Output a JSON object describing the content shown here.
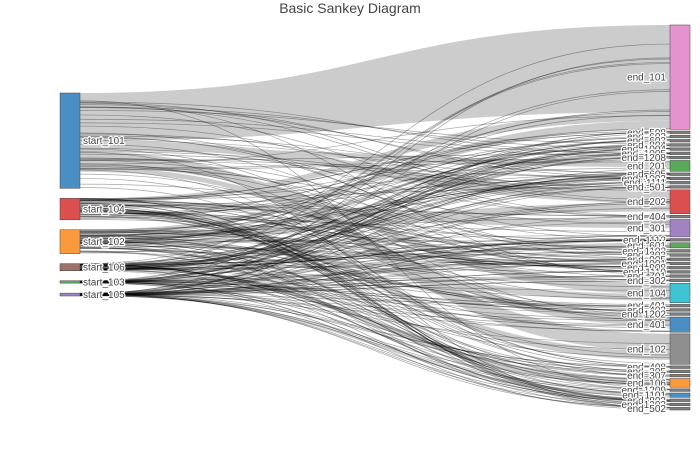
{
  "title": "Basic Sankey Diagram",
  "colors": {
    "major_link": "#c9c9c9",
    "minor_link": "#000000",
    "node_stroke": "#444444"
  },
  "chart_data": {
    "type": "sankey",
    "title": "Basic Sankey Diagram",
    "source_nodes": [
      {
        "name": "start_101",
        "color": "#4a8ec4",
        "value": 40
      },
      {
        "name": "start_104",
        "color": "#dc4f4f",
        "value": 9
      },
      {
        "name": "start_102",
        "color": "#fa9a3c",
        "value": 10
      },
      {
        "name": "start_106",
        "color": "#9c7268",
        "value": 3
      },
      {
        "name": "start_103",
        "color": "#5aa85a",
        "value": 1
      },
      {
        "name": "start_105",
        "color": "#a183c2",
        "value": 1.2
      }
    ],
    "target_nodes": [
      {
        "name": "end_101",
        "color": "#e593ce",
        "value": 24
      },
      {
        "name": "end_508",
        "color": "#7f7f7f",
        "value": 0.6
      },
      {
        "name": "end_602",
        "color": "#7f7f7f",
        "value": 0.6
      },
      {
        "name": "end_603",
        "color": "#7f7f7f",
        "value": 0.6
      },
      {
        "name": "end_804",
        "color": "#7f7f7f",
        "value": 0.6
      },
      {
        "name": "end_1004",
        "color": "#7f7f7f",
        "value": 0.6
      },
      {
        "name": "end_1005",
        "color": "#7f7f7f",
        "value": 0.6
      },
      {
        "name": "end_1208",
        "color": "#7f7f7f",
        "value": 0.6
      },
      {
        "name": "end_201",
        "color": "#5aa85a",
        "value": 2.5
      },
      {
        "name": "end_605",
        "color": "#7f7f7f",
        "value": 0.6
      },
      {
        "name": "end_1003",
        "color": "#7f7f7f",
        "value": 0.6
      },
      {
        "name": "end_1111",
        "color": "#7f7f7f",
        "value": 0.6
      },
      {
        "name": "end_501",
        "color": "#7f7f7f",
        "value": 0.6
      },
      {
        "name": "end_202",
        "color": "#dc4f4f",
        "value": 5.5
      },
      {
        "name": "end_404",
        "color": "#7f7f7f",
        "value": 0.6
      },
      {
        "name": "end_301",
        "color": "#a183c2",
        "value": 4
      },
      {
        "name": "end_1112",
        "color": "#7f7f7f",
        "value": 0.6
      },
      {
        "name": "end_601",
        "color": "#5aa85a",
        "value": 1.2
      },
      {
        "name": "end_1102",
        "color": "#7f7f7f",
        "value": 0.6
      },
      {
        "name": "end_303",
        "color": "#7f7f7f",
        "value": 0.6
      },
      {
        "name": "end_905",
        "color": "#7f7f7f",
        "value": 0.6
      },
      {
        "name": "end_1001",
        "color": "#7f7f7f",
        "value": 0.6
      },
      {
        "name": "end_908",
        "color": "#7f7f7f",
        "value": 0.6
      },
      {
        "name": "end_1110",
        "color": "#7f7f7f",
        "value": 0.6
      },
      {
        "name": "end_701",
        "color": "#7f7f7f",
        "value": 0.6
      },
      {
        "name": "end_302",
        "color": "#7f7f7f",
        "value": 0.6
      },
      {
        "name": "end_104",
        "color": "#3ec4d4",
        "value": 4.5
      },
      {
        "name": "end_401",
        "color": "#7f7f7f",
        "value": 0.6
      },
      {
        "name": "end_402",
        "color": "#7f7f7f",
        "value": 0.6
      },
      {
        "name": "end_1202",
        "color": "#7f7f7f",
        "value": 0.6
      },
      {
        "name": "end_401_",
        "color": "#4a8ec4",
        "value": 3.5
      },
      {
        "name": "end_102",
        "color": "#8f8f8f",
        "value": 7
      },
      {
        "name": "end_408",
        "color": "#7f7f7f",
        "value": 0.6
      },
      {
        "name": "end_305",
        "color": "#7f7f7f",
        "value": 0.6
      },
      {
        "name": "end_307",
        "color": "#7f7f7f",
        "value": 0.6
      },
      {
        "name": "end_106",
        "color": "#fa9a3c",
        "value": 2
      },
      {
        "name": "end_1209",
        "color": "#7f7f7f",
        "value": 0.6
      },
      {
        "name": "end_1101",
        "color": "#4a8ec4",
        "value": 1
      },
      {
        "name": "end_803",
        "color": "#7f7f7f",
        "value": 0.6
      },
      {
        "name": "end_1203",
        "color": "#7f7f7f",
        "value": 0.6
      },
      {
        "name": "end_502",
        "color": "#7f7f7f",
        "value": 0.6
      }
    ],
    "target_labels": [
      "end_101",
      "end_508",
      "end_602",
      "end_603",
      "end_804",
      "end_1004",
      "end_1005",
      "end_1208",
      "end_201",
      "end_605",
      "end_1003",
      "end_1111",
      "end_501",
      "end_202",
      "end_404",
      "end_301",
      "end_1112",
      "end_601",
      "end_1102",
      "end_303",
      "end_905",
      "end_1001",
      "end_908",
      "end_1110",
      "end_701",
      "end_302",
      "end_104",
      "end_401",
      "end_402",
      "end_1202",
      "end_401",
      "end_102",
      "end_408",
      "end_305",
      "end_307",
      "end_106",
      "end_1209",
      "end_1101",
      "end_803",
      "end_1203",
      "end_502"
    ],
    "links": [
      {
        "source": "start_101",
        "target": "end_101",
        "value": 20
      },
      {
        "source": "start_104",
        "target": "end_101",
        "value": 2
      },
      {
        "source": "start_102",
        "target": "end_101",
        "value": 2
      },
      {
        "source": "start_101",
        "target": "end_202",
        "value": 3
      },
      {
        "source": "start_101",
        "target": "end_201",
        "value": 1.5
      },
      {
        "source": "start_101",
        "target": "end_102",
        "value": 4
      },
      {
        "source": "start_101",
        "target": "end_104",
        "value": 2.5
      },
      {
        "source": "start_101",
        "target": "end_401_",
        "value": 2
      },
      {
        "source": "start_104",
        "target": "end_301",
        "value": 2
      },
      {
        "source": "start_102",
        "target": "end_202",
        "value": 2
      },
      {
        "source": "start_104",
        "target": "end_102",
        "value": 2
      },
      {
        "source": "start_102",
        "target": "end_104",
        "value": 1.5
      },
      {
        "source": "start_106",
        "target": "end_106",
        "value": 1.5
      },
      {
        "source": "start_105",
        "target": "end_1101",
        "value": 0.8
      },
      {
        "source": "start_103",
        "target": "end_601",
        "value": 0.8
      }
    ]
  }
}
